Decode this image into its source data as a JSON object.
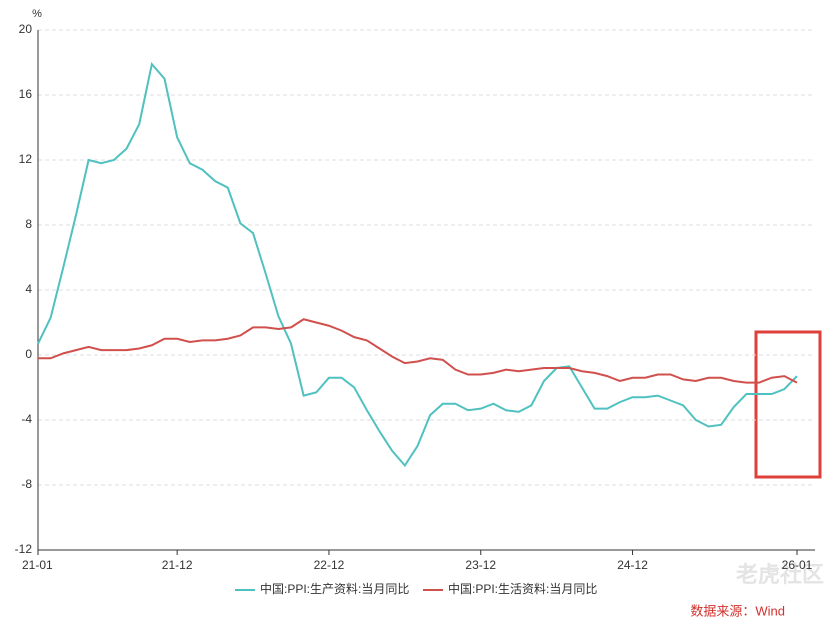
{
  "chart_data": {
    "type": "line",
    "y_unit": "%",
    "categories": [
      "21-01",
      null,
      null,
      null,
      null,
      null,
      null,
      null,
      null,
      null,
      null,
      "21-12",
      null,
      null,
      null,
      null,
      null,
      null,
      null,
      null,
      null,
      null,
      null,
      "22-12",
      null,
      null,
      null,
      null,
      null,
      null,
      null,
      null,
      null,
      null,
      null,
      "23-12",
      null,
      null,
      null,
      null,
      null,
      null,
      null,
      null,
      null,
      null,
      null,
      "24-12",
      null,
      null,
      null,
      null,
      null,
      null,
      null,
      null,
      null,
      null,
      null,
      null,
      "26-01"
    ],
    "series": [
      {
        "name": "中国:PPI:生产资料:当月同比",
        "color": "#4fc1c0",
        "values": [
          0.7,
          2.3,
          5.4,
          8.6,
          12.0,
          11.8,
          12.0,
          12.7,
          14.2,
          17.9,
          17.0,
          13.4,
          11.8,
          11.4,
          10.7,
          10.3,
          8.1,
          7.5,
          5.0,
          2.4,
          0.7,
          -2.5,
          -2.3,
          -1.4,
          -1.4,
          -2.0,
          -3.4,
          -4.7,
          -5.9,
          -6.8,
          -5.6,
          -3.7,
          -3.0,
          -3.0,
          -3.4,
          -3.3,
          -3.0,
          -3.4,
          -3.5,
          -3.1,
          -1.6,
          -0.8,
          -0.7,
          -2.0,
          -3.3,
          -3.3,
          -2.9,
          -2.6,
          -2.6,
          -2.5,
          -2.8,
          -3.1,
          -4.0,
          -4.4,
          -4.3,
          -3.2,
          -2.4,
          -2.4,
          -2.4,
          -2.1,
          -1.3
        ]
      },
      {
        "name": "中国:PPI:生活资料:当月同比",
        "color": "#d0504e",
        "values": [
          -0.2,
          -0.2,
          0.1,
          0.3,
          0.5,
          0.3,
          0.3,
          0.3,
          0.4,
          0.6,
          1.0,
          1.0,
          0.8,
          0.9,
          0.9,
          1.0,
          1.2,
          1.7,
          1.7,
          1.6,
          1.7,
          2.2,
          2.0,
          1.8,
          1.5,
          1.1,
          0.9,
          0.4,
          -0.1,
          -0.5,
          -0.4,
          -0.2,
          -0.3,
          -0.9,
          -1.2,
          -1.2,
          -1.1,
          -0.9,
          -1.0,
          -0.9,
          -0.8,
          -0.8,
          -0.8,
          -1.0,
          -1.1,
          -1.3,
          -1.6,
          -1.4,
          -1.4,
          -1.2,
          -1.2,
          -1.5,
          -1.6,
          -1.4,
          -1.4,
          -1.6,
          -1.7,
          -1.7,
          -1.4,
          -1.3,
          -1.7
        ]
      }
    ],
    "ylim": [
      -12,
      20
    ],
    "yticks": [
      -12,
      -8,
      -4,
      0,
      4,
      8,
      12,
      16,
      20
    ],
    "grid": true,
    "source": "数据来源：Wind",
    "watermark": "老虎社区"
  }
}
